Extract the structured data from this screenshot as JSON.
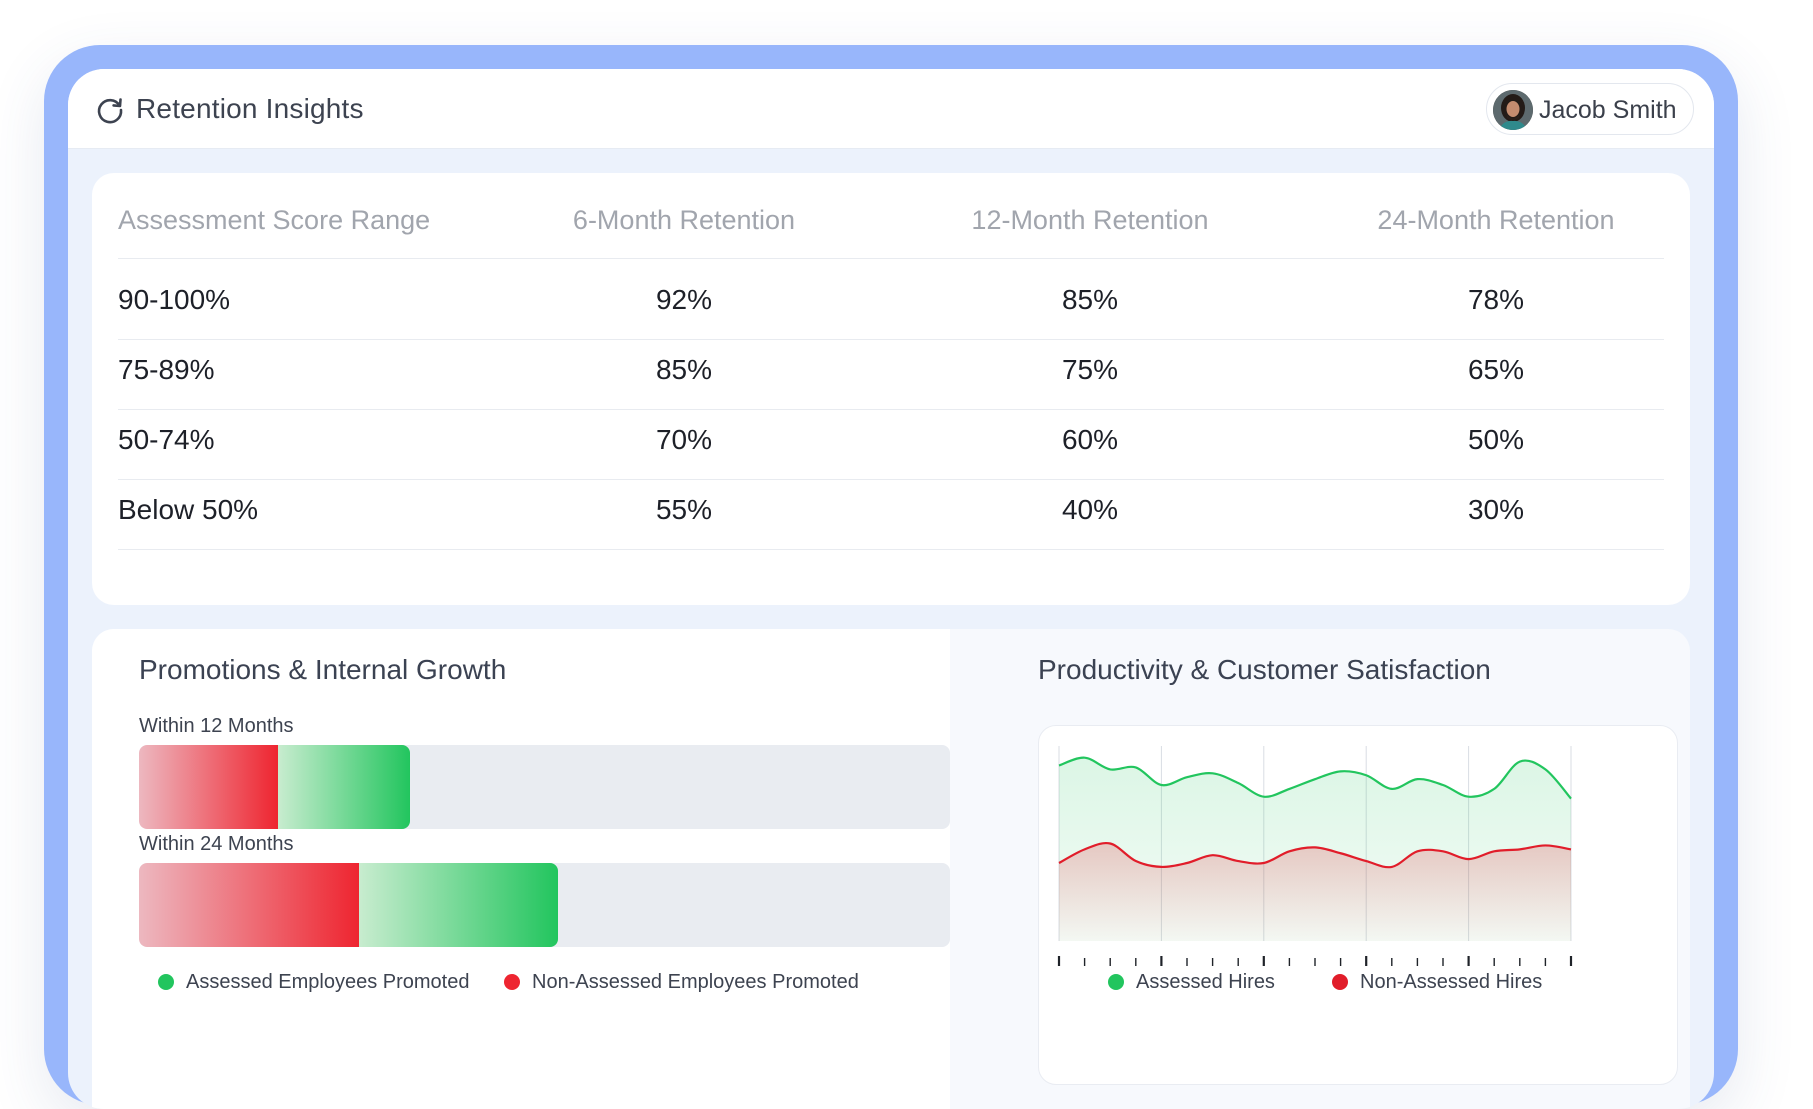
{
  "header": {
    "app_title": "Retention Insights",
    "refresh_icon": "refresh-icon",
    "user": {
      "name": "Jacob Smith",
      "avatar_icon": "user-avatar"
    }
  },
  "retention_table": {
    "columns": [
      "Assessment Score Range",
      "6-Month Retention",
      "12-Month Retention",
      "24-Month Retention"
    ],
    "rows": [
      [
        "90-100%",
        "92%",
        "85%",
        "78%"
      ],
      [
        "75-89%",
        "85%",
        "75%",
        "65%"
      ],
      [
        "50-74%",
        "70%",
        "60%",
        "50%"
      ],
      [
        "Below 50%",
        "55%",
        "40%",
        "30%"
      ]
    ]
  },
  "promotions": {
    "title": "Promotions & Internal Growth",
    "bars": [
      {
        "label": "Within 12 Months",
        "non_assessed_share": 0.172,
        "assessed_share": 0.162
      },
      {
        "label": "Within 24 Months",
        "non_assessed_share": 0.271,
        "assessed_share": 0.246
      }
    ],
    "legend": [
      {
        "label": "Assessed Employees Promoted",
        "color": "#22c55e"
      },
      {
        "label": "Non-Assessed Employees Promoted",
        "color": "#ee2530"
      }
    ]
  },
  "productivity": {
    "title": "Productivity & Customer Satisfaction",
    "legend": [
      {
        "label": "Assessed Hires",
        "color": "#22c55e"
      },
      {
        "label": "Non-Assessed Hires",
        "color": "#e11d2a"
      }
    ]
  },
  "chart_data": {
    "type": "area",
    "title": "Productivity & Customer Satisfaction",
    "xlabel": "",
    "ylabel": "",
    "ylim": [
      0,
      100
    ],
    "x": [
      0,
      1,
      2,
      3,
      4,
      5,
      6,
      7,
      8,
      9,
      10,
      11,
      12,
      13,
      14,
      15,
      16,
      17,
      18,
      19,
      20
    ],
    "grid": "vertical",
    "series": [
      {
        "name": "Assessed Hires",
        "color": "#22c55e",
        "values": [
          90,
          94,
          88,
          89,
          80,
          84,
          86,
          81,
          74,
          78,
          83,
          87,
          85,
          78,
          83,
          80,
          74,
          78,
          92,
          88,
          73
        ]
      },
      {
        "name": "Non-Assessed Hires",
        "color": "#e11d2a",
        "values": [
          40,
          47,
          50,
          41,
          38,
          40,
          44,
          41,
          40,
          46,
          48,
          45,
          41,
          38,
          46,
          46,
          42,
          46,
          47,
          49,
          47
        ]
      }
    ]
  }
}
